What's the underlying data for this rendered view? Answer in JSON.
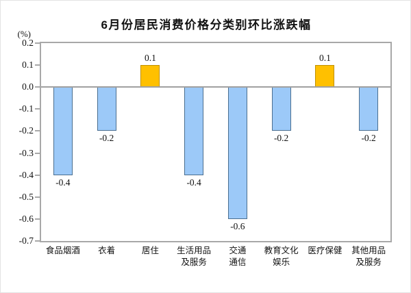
{
  "chart_data": {
    "type": "bar",
    "title": "6月份居民消费价格分类别环比涨跌幅",
    "unit_label": "(%)",
    "categories": [
      "食品烟酒",
      "衣着",
      "居住",
      "生活用品及服务",
      "交通通信",
      "教育文化娱乐",
      "医疗保健",
      "其他用品及服务"
    ],
    "category_label_lines": [
      [
        "食品烟酒"
      ],
      [
        "衣着"
      ],
      [
        "居住"
      ],
      [
        "生活用品",
        "及服务"
      ],
      [
        "交通",
        "通信"
      ],
      [
        "教育文化",
        "娱乐"
      ],
      [
        "医疗保健"
      ],
      [
        "其他用品",
        "及服务"
      ]
    ],
    "values": [
      -0.4,
      -0.2,
      0.1,
      -0.4,
      -0.6,
      -0.2,
      0.1,
      -0.2
    ],
    "value_labels": [
      "-0.4",
      "-0.2",
      "0.1",
      "-0.4",
      "-0.6",
      "-0.2",
      "0.1",
      "-0.2"
    ],
    "ylabel": "(%)",
    "xlabel": "",
    "ylim": [
      -0.7,
      0.2
    ],
    "ytick_step": 0.1,
    "yticks": [
      "0.2",
      "0.1",
      "0.0",
      "-0.1",
      "-0.2",
      "-0.3",
      "-0.4",
      "-0.5",
      "-0.6",
      "-0.7"
    ],
    "grid": false,
    "legend": false,
    "colors": {
      "positive_fill": "#FFC000",
      "positive_border": "#BF8F00",
      "negative_fill": "#9CC9F8",
      "negative_border": "#4A6E8F",
      "axis": "#A8A8A8",
      "text": "#111111"
    }
  }
}
